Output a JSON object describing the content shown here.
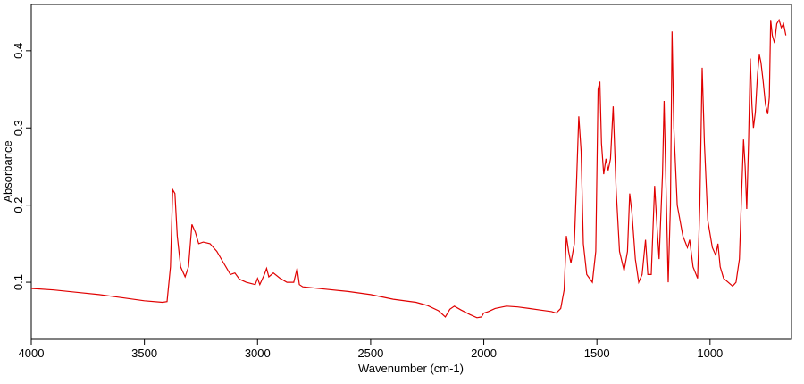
{
  "chart_data": {
    "type": "line",
    "x_label": "Wavenumber (cm-1)",
    "y_label": "Absorbance",
    "xlim": [
      4000,
      640
    ],
    "ylim": [
      0.026,
      0.46
    ],
    "xticks": [
      4000,
      3500,
      3000,
      2500,
      2000,
      1500,
      1000
    ],
    "yticks": [
      0.1,
      0.2,
      0.3,
      0.4
    ],
    "x": [
      4000,
      3900,
      3800,
      3700,
      3600,
      3500,
      3420,
      3400,
      3385,
      3375,
      3365,
      3355,
      3340,
      3320,
      3305,
      3290,
      3275,
      3260,
      3240,
      3210,
      3180,
      3150,
      3120,
      3100,
      3080,
      3050,
      3010,
      3000,
      2990,
      2970,
      2960,
      2950,
      2930,
      2900,
      2870,
      2840,
      2825,
      2815,
      2800,
      2700,
      2600,
      2500,
      2400,
      2300,
      2250,
      2200,
      2170,
      2150,
      2130,
      2100,
      2060,
      2030,
      2010,
      2000,
      1980,
      1950,
      1900,
      1850,
      1800,
      1750,
      1700,
      1680,
      1660,
      1645,
      1635,
      1625,
      1615,
      1600,
      1590,
      1580,
      1570,
      1560,
      1545,
      1520,
      1505,
      1495,
      1487,
      1480,
      1470,
      1460,
      1450,
      1440,
      1428,
      1415,
      1400,
      1380,
      1365,
      1355,
      1345,
      1330,
      1315,
      1300,
      1285,
      1275,
      1260,
      1245,
      1235,
      1225,
      1210,
      1203,
      1195,
      1185,
      1175,
      1168,
      1160,
      1145,
      1120,
      1100,
      1090,
      1075,
      1055,
      1045,
      1035,
      1025,
      1010,
      990,
      975,
      965,
      955,
      940,
      920,
      900,
      885,
      870,
      860,
      852,
      845,
      838,
      830,
      822,
      815,
      808,
      800,
      790,
      782,
      775,
      765,
      755,
      745,
      738,
      732,
      725,
      715,
      705,
      695,
      685,
      675,
      665
    ],
    "series": [
      {
        "color": "#e00000",
        "values": [
          0.092,
          0.09,
          0.087,
          0.084,
          0.08,
          0.076,
          0.074,
          0.075,
          0.12,
          0.22,
          0.215,
          0.16,
          0.12,
          0.107,
          0.12,
          0.175,
          0.165,
          0.15,
          0.152,
          0.15,
          0.14,
          0.125,
          0.11,
          0.112,
          0.104,
          0.1,
          0.097,
          0.105,
          0.097,
          0.11,
          0.118,
          0.107,
          0.112,
          0.105,
          0.1,
          0.1,
          0.118,
          0.097,
          0.094,
          0.091,
          0.088,
          0.084,
          0.078,
          0.074,
          0.07,
          0.063,
          0.055,
          0.065,
          0.069,
          0.064,
          0.058,
          0.054,
          0.055,
          0.06,
          0.062,
          0.066,
          0.069,
          0.068,
          0.066,
          0.064,
          0.062,
          0.06,
          0.066,
          0.09,
          0.16,
          0.14,
          0.125,
          0.15,
          0.23,
          0.315,
          0.27,
          0.15,
          0.11,
          0.1,
          0.14,
          0.35,
          0.36,
          0.28,
          0.24,
          0.26,
          0.245,
          0.26,
          0.328,
          0.22,
          0.14,
          0.115,
          0.14,
          0.215,
          0.19,
          0.13,
          0.1,
          0.11,
          0.155,
          0.11,
          0.11,
          0.225,
          0.175,
          0.13,
          0.24,
          0.335,
          0.23,
          0.1,
          0.2,
          0.425,
          0.3,
          0.2,
          0.16,
          0.145,
          0.155,
          0.12,
          0.105,
          0.2,
          0.378,
          0.28,
          0.18,
          0.145,
          0.135,
          0.15,
          0.12,
          0.105,
          0.1,
          0.095,
          0.1,
          0.13,
          0.22,
          0.285,
          0.25,
          0.195,
          0.28,
          0.39,
          0.33,
          0.3,
          0.32,
          0.37,
          0.395,
          0.385,
          0.36,
          0.33,
          0.318,
          0.34,
          0.44,
          0.42,
          0.41,
          0.435,
          0.44,
          0.43,
          0.435,
          0.42
        ]
      }
    ]
  }
}
